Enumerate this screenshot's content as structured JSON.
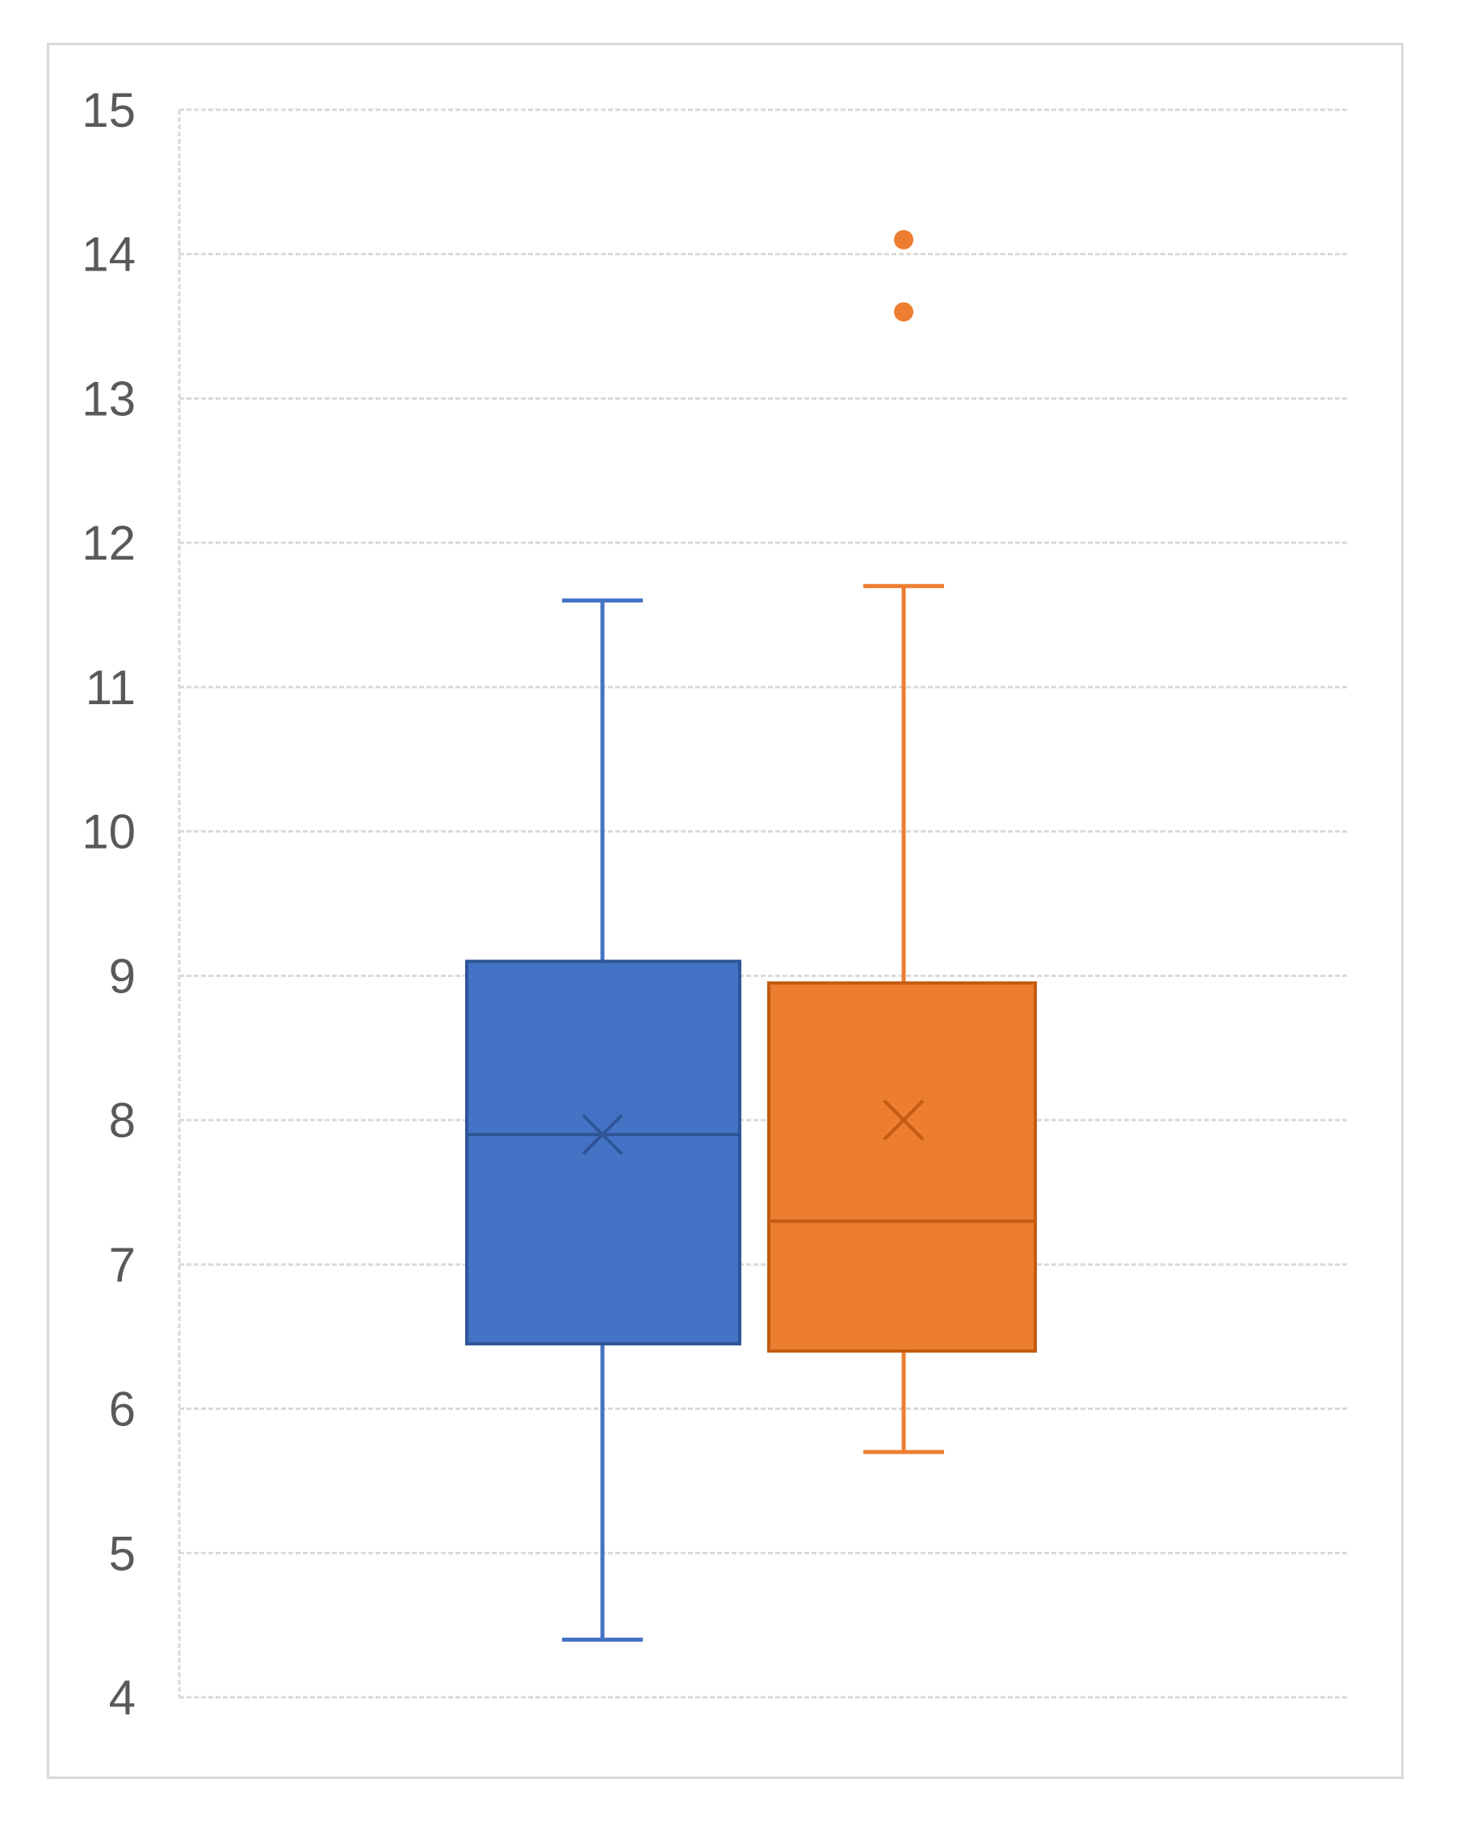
{
  "chart_data": {
    "type": "box",
    "title": "",
    "xlabel": "",
    "ylabel": "",
    "ylim": [
      4,
      15
    ],
    "y_ticks": [
      "4",
      "5",
      "6",
      "7",
      "8",
      "9",
      "10",
      "11",
      "12",
      "13",
      "14",
      "15"
    ],
    "grid": true,
    "legend": "none",
    "series": [
      {
        "color": "#4472C4",
        "min": 4.4,
        "q1": 6.45,
        "median": 7.9,
        "q3": 9.1,
        "max": 11.6,
        "mean": 7.9,
        "outliers": []
      },
      {
        "color": "#ED7D31",
        "min": 5.7,
        "q1": 6.4,
        "median": 7.3,
        "q3": 8.95,
        "max": 11.7,
        "mean": 8.0,
        "outliers": [
          13.6,
          14.1
        ]
      }
    ]
  }
}
